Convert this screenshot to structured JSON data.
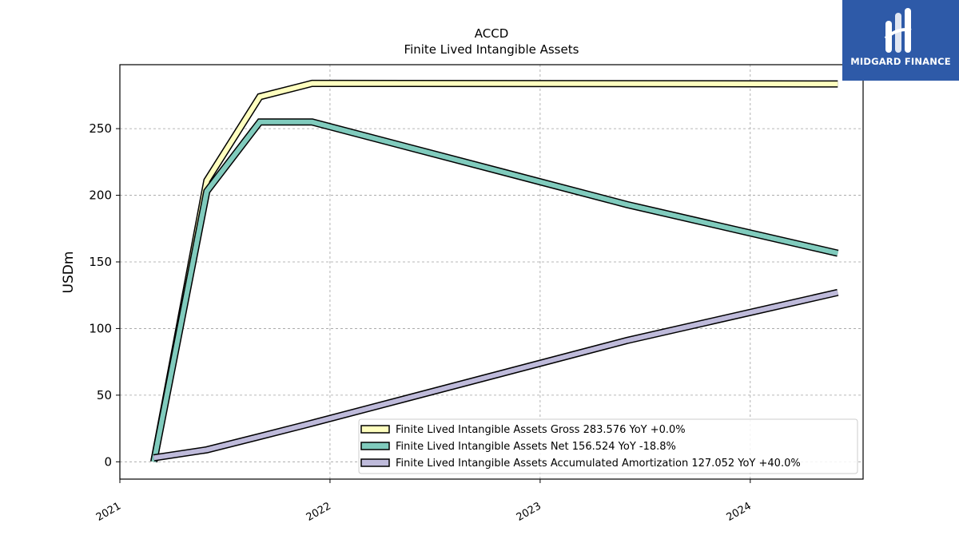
{
  "chart_data": {
    "type": "line",
    "title": "ACCD",
    "subtitle": "Finite Lived Intangible Assets",
    "ylabel": "USDm",
    "xlabel": "",
    "xlim": [
      "2021-01-01",
      "2024-07-15"
    ],
    "ylim": [
      -13,
      298
    ],
    "x_ticks": [
      {
        "date": "2021-01-01",
        "label": "2021"
      },
      {
        "date": "2022-01-01",
        "label": "2022"
      },
      {
        "date": "2023-01-01",
        "label": "2023"
      },
      {
        "date": "2024-01-01",
        "label": "2024"
      }
    ],
    "y_ticks": [
      0,
      50,
      100,
      150,
      200,
      250
    ],
    "grid": true,
    "legend_position": "lower-right",
    "series": [
      {
        "name": "Finite Lived Intangible Assets Gross",
        "legend_label": "Finite Lived Intangible Assets Gross  283.576 YoY +0.0%",
        "color": "#ffffbf",
        "points": [
          {
            "x": "2021-03-01",
            "y": 0
          },
          {
            "x": "2021-06-01",
            "y": 211
          },
          {
            "x": "2021-09-01",
            "y": 274
          },
          {
            "x": "2021-12-01",
            "y": 284
          },
          {
            "x": "2024-06-01",
            "y": 283.576
          }
        ]
      },
      {
        "name": "Finite Lived Intangible Assets Net",
        "legend_label": "Finite Lived Intangible Assets Net  156.524 YoY -18.8%",
        "color": "#80cbbd",
        "points": [
          {
            "x": "2021-03-01",
            "y": 0
          },
          {
            "x": "2021-06-01",
            "y": 203
          },
          {
            "x": "2021-09-01",
            "y": 255
          },
          {
            "x": "2021-12-01",
            "y": 255
          },
          {
            "x": "2023-06-01",
            "y": 193
          },
          {
            "x": "2024-06-01",
            "y": 156.524
          }
        ]
      },
      {
        "name": "Finite Lived Intangible Assets Accumulated Amortization",
        "legend_label": "Finite Lived Intangible Assets Accumulated Amortization  127.052 YoY +40.0%",
        "color": "#bebada",
        "points": [
          {
            "x": "2021-03-01",
            "y": 3
          },
          {
            "x": "2021-06-01",
            "y": 9
          },
          {
            "x": "2021-09-01",
            "y": 19
          },
          {
            "x": "2021-12-01",
            "y": 29
          },
          {
            "x": "2023-06-01",
            "y": 91
          },
          {
            "x": "2024-06-01",
            "y": 127.052
          }
        ]
      }
    ]
  },
  "logo": {
    "text": "MIDGARD FINANCE",
    "bg_color": "#2e5aa8"
  }
}
